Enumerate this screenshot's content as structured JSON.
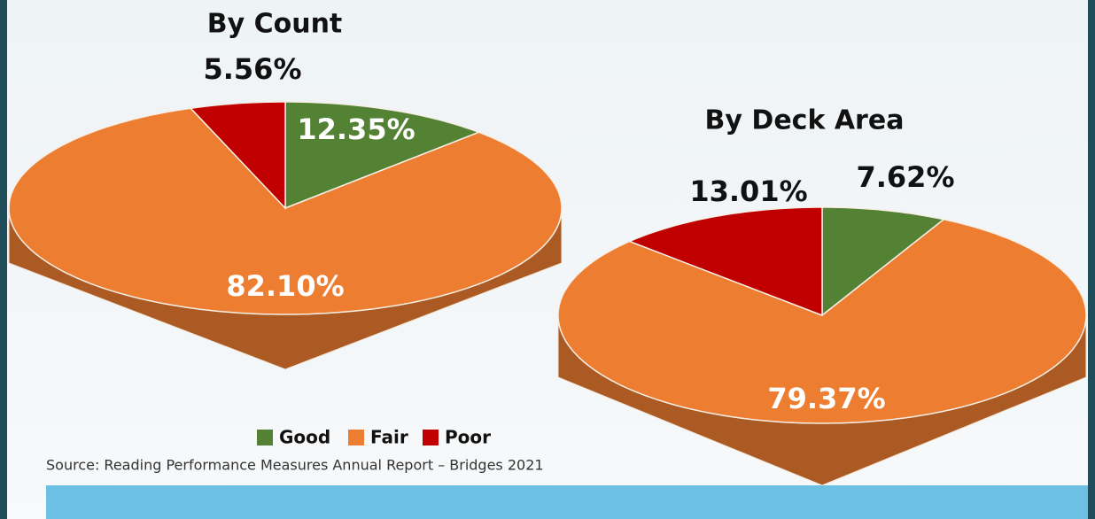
{
  "chart_data": [
    {
      "type": "pie",
      "title": "By Count",
      "values": [
        12.35,
        82.1,
        5.56
      ],
      "value_labels": [
        "12.35%",
        "82.10%",
        "5.56%"
      ]
    },
    {
      "type": "pie",
      "title": "By Deck Area",
      "values": [
        7.62,
        79.37,
        13.01
      ],
      "value_labels": [
        "7.62%",
        "79.37%",
        "13.01%"
      ]
    }
  ],
  "legend": {
    "categories": [
      "Good",
      "Fair",
      "Poor"
    ],
    "colors": [
      "#548235",
      "#ed7d31",
      "#c00000"
    ]
  },
  "source": "Source: Reading Performance Measures Annual Report – Bridges 2021"
}
